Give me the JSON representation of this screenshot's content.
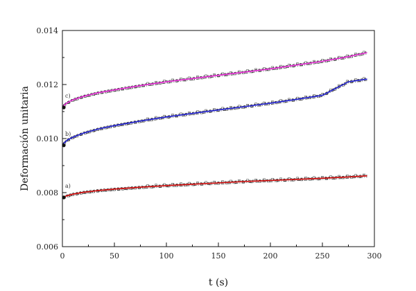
{
  "chart_data": {
    "type": "line",
    "xlabel": "t (s)",
    "ylabel": "Deformación unitaria",
    "xlim": [
      0,
      300
    ],
    "ylim": [
      0.006,
      0.014
    ],
    "xticks": [
      "0",
      "50",
      "100",
      "150",
      "200",
      "250",
      "300"
    ],
    "yticks": [
      "0.006",
      "0.008",
      "0.010",
      "0.012",
      "0.014"
    ],
    "grid": false,
    "curve_labels": [
      "a)",
      "b)",
      "c)"
    ],
    "series": [
      {
        "label": "a)",
        "color": "#cc0000",
        "x": [
          0,
          2,
          5,
          10,
          20,
          35,
          50,
          75,
          100,
          125,
          150,
          175,
          200,
          225,
          250,
          275,
          293
        ],
        "y": [
          0.00782,
          0.00785,
          0.00789,
          0.00794,
          0.00801,
          0.00808,
          0.00813,
          0.0082,
          0.00826,
          0.00831,
          0.00836,
          0.00841,
          0.00845,
          0.00849,
          0.00853,
          0.00858,
          0.00862
        ]
      },
      {
        "label": "b)",
        "color": "#1a1acc",
        "x": [
          0,
          2,
          5,
          10,
          20,
          35,
          50,
          75,
          100,
          125,
          150,
          175,
          200,
          225,
          250,
          275,
          293
        ],
        "y": [
          0.00975,
          0.00985,
          0.00995,
          0.01005,
          0.0102,
          0.01036,
          0.01048,
          0.01065,
          0.0108,
          0.01093,
          0.01106,
          0.01118,
          0.01131,
          0.01145,
          0.0116,
          0.0121,
          0.0122
        ]
      },
      {
        "label": "c)",
        "color": "#dd22cc",
        "x": [
          0,
          2,
          5,
          10,
          20,
          35,
          50,
          75,
          100,
          125,
          150,
          175,
          200,
          225,
          250,
          275,
          293
        ],
        "y": [
          0.01115,
          0.01125,
          0.01133,
          0.01143,
          0.01156,
          0.0117,
          0.0118,
          0.01196,
          0.0121,
          0.01222,
          0.01234,
          0.01246,
          0.01258,
          0.01272,
          0.01286,
          0.01303,
          0.01318
        ]
      }
    ]
  }
}
